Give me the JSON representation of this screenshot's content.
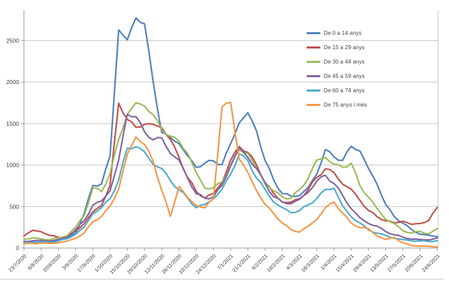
{
  "chart_data": {
    "type": "line",
    "sampling": "weekly points, axis ticks every 14 days",
    "x_labels": [
      "23/7/2020",
      "6/8/2020",
      "20/8/2020",
      "3/9/2020",
      "17/9/2020",
      "1/10/2020",
      "15/10/2020",
      "29/10/2020",
      "12/11/2020",
      "26/11/2020",
      "10/12/2020",
      "24/12/2020",
      "7/1/2021",
      "21/1/2021",
      "4/2/2021",
      "18/2/2021",
      "4/3/2021",
      "18/3/2021",
      "1/4/2021",
      "15/4/2021",
      "29/4/2021",
      "13/5/2021",
      "27/5/2021",
      "10/6/2021",
      "24/6/2021"
    ],
    "x_tick_every_points": 2,
    "yticks": [
      0,
      500,
      1000,
      1500,
      2000,
      2500
    ],
    "ylim": [
      0,
      2870
    ],
    "grid": true,
    "legend_position": "top-right",
    "colors": {
      "axis": "#9a9a9a",
      "grid": "#c6c6c6",
      "text": "#3c3c3c"
    },
    "series": [
      {
        "name": "De 0 a 14 anys",
        "color": "#4F81BD",
        "values": [
          60,
          70,
          80,
          70,
          90,
          120,
          180,
          420,
          750,
          780,
          1100,
          2640,
          2500,
          2780,
          2700,
          2000,
          1400,
          1320,
          1270,
          1100,
          980,
          1020,
          1050,
          1010,
          1250,
          1520,
          1620,
          1420,
          1050,
          820,
          660,
          620,
          640,
          720,
          900,
          1180,
          1100,
          1060,
          1220,
          1180,
          950,
          780,
          520,
          380,
          300,
          220,
          170,
          150,
          140
        ]
      },
      {
        "name": "De 15 a 29 anys",
        "color": "#C0504D",
        "values": [
          150,
          210,
          200,
          150,
          130,
          140,
          200,
          300,
          430,
          520,
          750,
          1750,
          1550,
          1450,
          1500,
          1480,
          1460,
          1300,
          1100,
          850,
          680,
          610,
          650,
          800,
          1050,
          1230,
          1150,
          1000,
          800,
          650,
          560,
          545,
          600,
          700,
          850,
          960,
          900,
          780,
          700,
          580,
          450,
          380,
          330,
          300,
          330,
          280,
          300,
          330,
          490
        ]
      },
      {
        "name": "De 30 a 44 anys",
        "color": "#9BBB59",
        "values": [
          110,
          120,
          110,
          100,
          120,
          150,
          250,
          400,
          720,
          680,
          900,
          1300,
          1620,
          1740,
          1720,
          1600,
          1430,
          1350,
          1280,
          1150,
          900,
          730,
          720,
          800,
          1000,
          1180,
          1150,
          950,
          800,
          680,
          620,
          600,
          700,
          850,
          1050,
          1100,
          1000,
          980,
          1020,
          750,
          620,
          470,
          350,
          290,
          210,
          180,
          200,
          170,
          230
        ]
      },
      {
        "name": "De 45 a 59 anys",
        "color": "#8064A2",
        "values": [
          80,
          90,
          90,
          85,
          100,
          130,
          220,
          330,
          520,
          560,
          700,
          1050,
          1620,
          1580,
          1400,
          1310,
          1320,
          1150,
          1050,
          850,
          650,
          600,
          620,
          750,
          1000,
          1200,
          1100,
          950,
          780,
          620,
          550,
          540,
          580,
          680,
          800,
          880,
          780,
          630,
          480,
          360,
          300,
          260,
          200,
          160,
          130,
          110,
          100,
          100,
          120
        ]
      },
      {
        "name": "De 60 a 74 anys",
        "color": "#4BACC6",
        "values": [
          60,
          70,
          75,
          70,
          85,
          110,
          170,
          250,
          420,
          480,
          600,
          820,
          1200,
          1230,
          1150,
          1020,
          950,
          820,
          700,
          600,
          490,
          520,
          600,
          700,
          900,
          1130,
          1050,
          850,
          700,
          560,
          480,
          430,
          450,
          520,
          600,
          700,
          730,
          500,
          380,
          300,
          220,
          180,
          150,
          120,
          100,
          90,
          85,
          80,
          90
        ]
      },
      {
        "name": "De 75 anys i més",
        "color": "#F79646",
        "values": [
          50,
          55,
          60,
          55,
          65,
          80,
          120,
          180,
          320,
          380,
          500,
          720,
          1120,
          1350,
          1240,
          1050,
          700,
          380,
          750,
          600,
          520,
          480,
          600,
          1700,
          1750,
          1080,
          900,
          700,
          520,
          420,
          300,
          220,
          195,
          260,
          350,
          480,
          560,
          420,
          300,
          250,
          230,
          150,
          100,
          130,
          60,
          30,
          25,
          20,
          15
        ]
      }
    ]
  }
}
